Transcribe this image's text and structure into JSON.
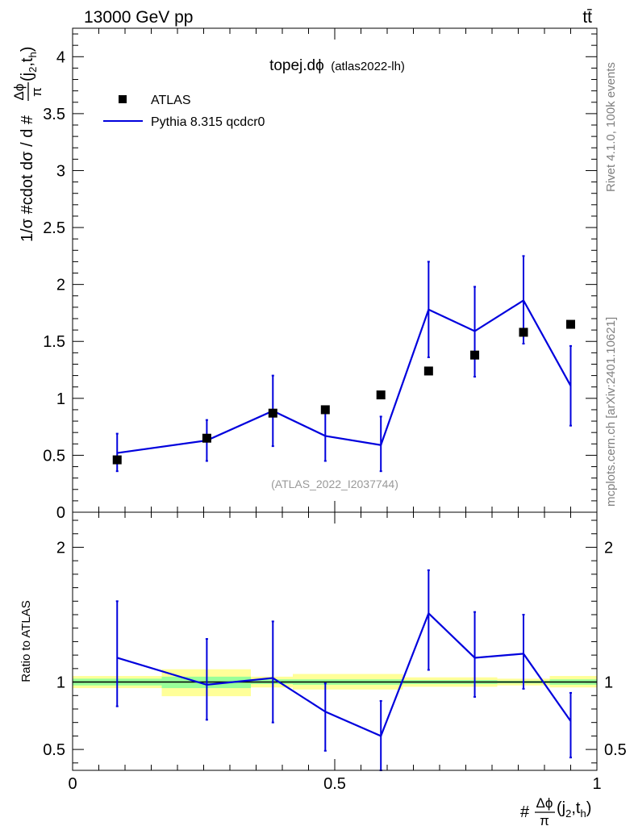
{
  "header": {
    "left": "13000 GeV pp",
    "right": "tt̄"
  },
  "side_labels": {
    "rivet": "Rivet 4.1.0,  100k events",
    "mcplots": "mcplots.cern.ch [arXiv:2401.10621]"
  },
  "chart_data": [
    {
      "type": "scatter",
      "panel": "main",
      "title": "topej.dϕ",
      "subtitle": "(atlas2022-lh)",
      "watermark": "(ATLAS_2022_I2037744)",
      "ylabel": "1/σ #cdot dσ / d #Δϕ/π(j2,th)",
      "ylabel_parts": {
        "pre": "1/σ #cdot dσ / d #",
        "frac_num": "Δϕ",
        "frac_den": "π",
        "args": "(j",
        "sub1": "2",
        "comma": ",t",
        "sub2": "h",
        "close": ")"
      },
      "xlim": [
        0,
        1
      ],
      "ylim": [
        0,
        4.25
      ],
      "yticks": [
        0,
        0.5,
        1,
        1.5,
        2,
        2.5,
        3,
        3.5,
        4
      ],
      "ytick_labels": [
        "0",
        "0.5",
        "1",
        "1.5",
        "2",
        "2.5",
        "3",
        "3.5",
        "4"
      ],
      "legend": {
        "placement": "top-left",
        "entries": [
          "ATLAS",
          "Pythia 8.315 qcdcr0"
        ]
      },
      "series": [
        {
          "name": "ATLAS",
          "style": "markers",
          "color": "#000000",
          "x": [
            0.085,
            0.256,
            0.382,
            0.482,
            0.588,
            0.679,
            0.767,
            0.86,
            0.95
          ],
          "y": [
            0.46,
            0.65,
            0.87,
            0.9,
            1.03,
            1.24,
            1.38,
            1.58,
            1.65
          ]
        },
        {
          "name": "Pythia 8.315 qcdcr0",
          "style": "line",
          "color": "#0000dd",
          "x": [
            0.085,
            0.256,
            0.382,
            0.482,
            0.588,
            0.679,
            0.767,
            0.86,
            0.95
          ],
          "y": [
            0.52,
            0.63,
            0.89,
            0.67,
            0.59,
            1.78,
            1.59,
            1.86,
            1.11
          ],
          "err_low": [
            0.36,
            0.45,
            0.58,
            0.45,
            0.36,
            1.36,
            1.19,
            1.48,
            0.76
          ],
          "err_high": [
            0.69,
            0.81,
            1.2,
            0.88,
            0.84,
            2.2,
            1.98,
            2.25,
            1.46
          ]
        }
      ]
    },
    {
      "type": "line",
      "panel": "ratio",
      "ylabel": "Ratio to ATLAS",
      "xlabel": "#Δϕ/π(j2,th)",
      "xlabel_parts": {
        "pre": "#",
        "frac_num": "Δϕ",
        "frac_den": "π",
        "args": "(j",
        "sub1": "2",
        "comma": ",t",
        "sub2": "h",
        "close": ")"
      },
      "xlim": [
        0,
        1
      ],
      "ylim": [
        0.345,
        2.26
      ],
      "xticks": [
        0,
        0.5,
        1
      ],
      "xtick_labels": [
        "0",
        "0.5",
        "1"
      ],
      "yticks": [
        0.5,
        1,
        2
      ],
      "ytick_labels": [
        "0.5",
        "1",
        "2"
      ],
      "reference": 1,
      "bands": {
        "edges": [
          0,
          0.17,
          0.34,
          0.42,
          0.63,
          0.81,
          0.91,
          1.0
        ],
        "yellow": [
          [
            0.955,
            1.045
          ],
          [
            0.895,
            1.095
          ],
          [
            0.96,
            1.04
          ],
          [
            0.945,
            1.06
          ],
          [
            0.965,
            1.035
          ],
          [
            0.975,
            1.025
          ],
          [
            0.96,
            1.045
          ]
        ],
        "green": [
          [
            0.975,
            1.025
          ],
          [
            0.955,
            1.04
          ],
          [
            0.985,
            1.02
          ],
          [
            0.98,
            1.02
          ],
          [
            0.985,
            1.015
          ],
          [
            0.99,
            1.01
          ],
          [
            0.98,
            1.02
          ]
        ]
      },
      "series": [
        {
          "name": "Pythia 8.315 qcdcr0 / ATLAS",
          "color": "#0000dd",
          "x": [
            0.085,
            0.256,
            0.382,
            0.482,
            0.588,
            0.679,
            0.767,
            0.86,
            0.95
          ],
          "y": [
            1.18,
            0.98,
            1.03,
            0.78,
            0.6,
            1.51,
            1.18,
            1.21,
            0.71
          ],
          "err_low": [
            0.82,
            0.72,
            0.7,
            0.49,
            0.34,
            1.09,
            0.89,
            0.95,
            0.44
          ],
          "err_high": [
            1.6,
            1.32,
            1.45,
            0.99,
            0.86,
            1.83,
            1.52,
            1.5,
            0.92
          ]
        }
      ]
    }
  ]
}
